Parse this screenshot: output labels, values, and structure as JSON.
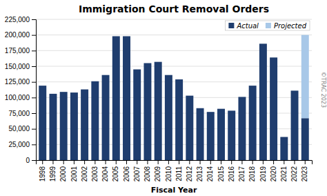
{
  "chart_data": {
    "type": "bar",
    "stacked": true,
    "title": "Immigration Court Removal Orders",
    "xlabel": "Fiscal Year",
    "categories": [
      "1998",
      "1999",
      "2000",
      "2001",
      "2002",
      "2003",
      "2004",
      "2005",
      "2006",
      "2007",
      "2008",
      "2009",
      "2010",
      "2011",
      "2012",
      "2013",
      "2014",
      "2015",
      "2016",
      "2017",
      "2018",
      "2019",
      "2020",
      "2021",
      "2022",
      "2023"
    ],
    "series": [
      {
        "name": "Actual",
        "color": "#1f3d6e",
        "values": [
          119000,
          106000,
          109000,
          108000,
          113000,
          126000,
          136000,
          198000,
          198000,
          145000,
          155000,
          157000,
          136000,
          129000,
          103000,
          83000,
          77000,
          82000,
          79000,
          101000,
          119000,
          186000,
          164000,
          37000,
          111000,
          67000
        ]
      },
      {
        "name": "Projected",
        "color": "#a8c8e8",
        "values": [
          0,
          0,
          0,
          0,
          0,
          0,
          0,
          0,
          0,
          0,
          0,
          0,
          0,
          0,
          0,
          0,
          0,
          0,
          0,
          0,
          0,
          0,
          0,
          0,
          0,
          133000
        ]
      }
    ],
    "ylim": [
      0,
      225000
    ],
    "yticks": [
      0,
      {
        "value": 25000,
        "label": "25,000"
      },
      {
        "value": 50000,
        "label": "50,000"
      },
      {
        "value": 75000,
        "label": "75,000"
      },
      {
        "value": 100000,
        "label": "100,000"
      },
      {
        "value": 125000,
        "label": "125,000"
      },
      {
        "value": 150000,
        "label": "150,000"
      },
      {
        "value": 175000,
        "label": "175,000"
      },
      {
        "value": 200000,
        "label": "200,000"
      },
      {
        "value": 225000,
        "label": "225,000"
      }
    ],
    "grid": true,
    "legend": "upper right",
    "annotations": [
      "©TRAC 2023"
    ]
  }
}
